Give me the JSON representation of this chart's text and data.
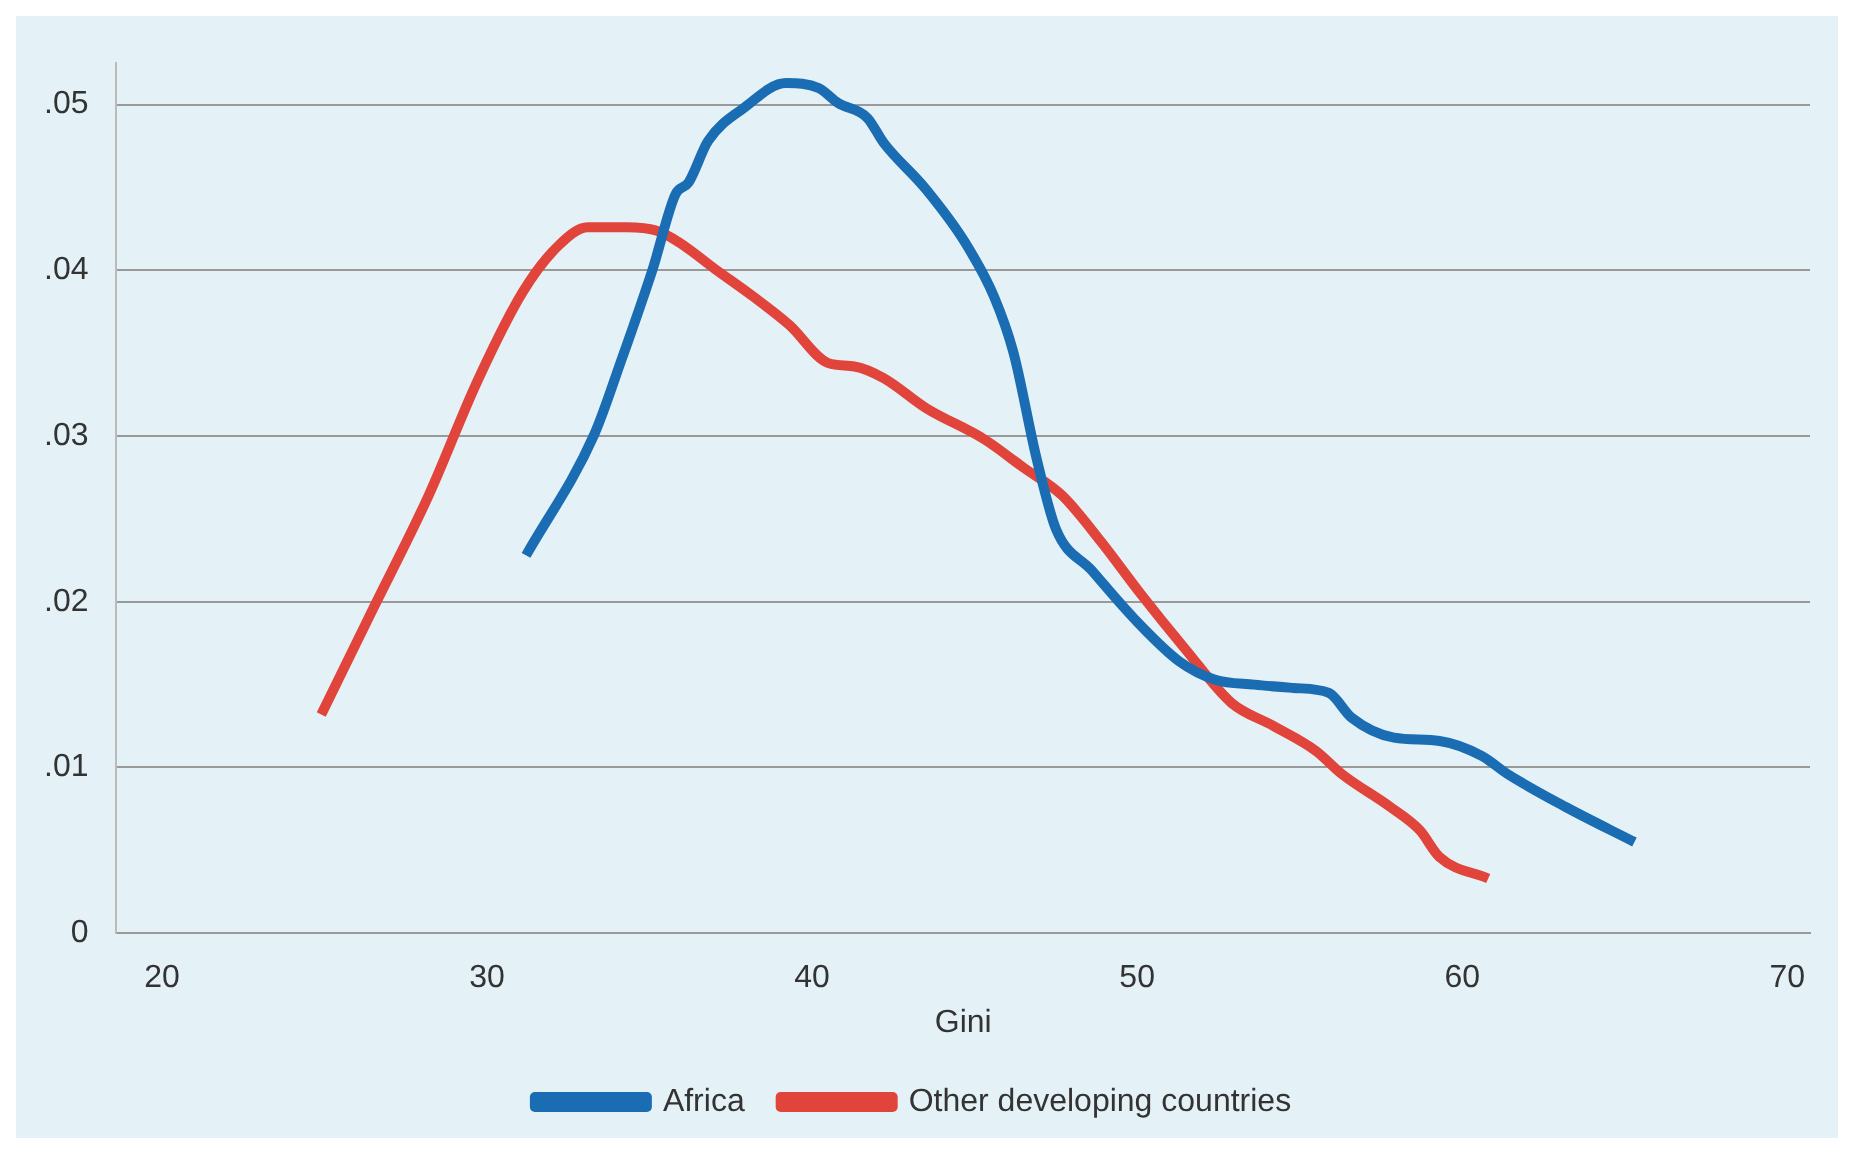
{
  "chart_data": {
    "type": "line",
    "xlabel": "Gini",
    "xlim": [
      18.6,
      70.7
    ],
    "xticks": [
      20,
      30,
      40,
      50,
      60,
      70
    ],
    "ylim": [
      0,
      0.0525
    ],
    "yticks": [
      {
        "value": 0,
        "label": "0"
      },
      {
        "value": 0.01,
        "label": ".01"
      },
      {
        "value": 0.02,
        "label": ".02"
      },
      {
        "value": 0.03,
        "label": ".03"
      },
      {
        "value": 0.04,
        "label": ".04"
      },
      {
        "value": 0.05,
        "label": ".05"
      }
    ],
    "grid": "y",
    "legend": "bottom",
    "marker": "none",
    "line_style": "solid",
    "series": [
      {
        "name": "Africa",
        "color": "#1a6db3",
        "x": [
          31.2,
          33.3,
          34.1,
          35.1,
          35.8,
          36.2,
          36.8,
          37.9,
          39.2,
          40.2,
          40.8,
          41.7,
          42.2,
          43.5,
          44.7,
          45.6,
          46.2,
          46.9,
          47.5,
          48.6,
          49.9,
          51.3,
          52.4,
          53.6,
          54.8,
          55.9,
          56.6,
          57.9,
          59.3,
          60.6,
          61.4,
          63.2,
          65.3
        ],
        "values": [
          0.0228,
          0.0301,
          0.0344,
          0.0401,
          0.0446,
          0.0453,
          0.0478,
          0.0498,
          0.0513,
          0.051,
          0.0501,
          0.0492,
          0.0477,
          0.0449,
          0.0417,
          0.0384,
          0.035,
          0.0287,
          0.0244,
          0.0219,
          0.019,
          0.0164,
          0.0153,
          0.015,
          0.0148,
          0.0145,
          0.013,
          0.0118,
          0.0116,
          0.0107,
          0.0096,
          0.0076,
          0.0055
        ]
      },
      {
        "name": "Other developing countries",
        "color": "#e0443a",
        "x": [
          24.9,
          26.5,
          28.2,
          29.7,
          31.1,
          32.2,
          33.1,
          34.3,
          35.2,
          35.9,
          37.0,
          38.2,
          39.3,
          40.5,
          41.3,
          42.2,
          43.5,
          45.3,
          46.5,
          47.7,
          48.9,
          50.1,
          51.5,
          52.9,
          54.2,
          55.5,
          56.3,
          57.8,
          58.7,
          59.3,
          60.8
        ],
        "values": [
          0.0132,
          0.0196,
          0.0264,
          0.0333,
          0.0387,
          0.0415,
          0.0426,
          0.0426,
          0.0424,
          0.0417,
          0.0401,
          0.0384,
          0.0367,
          0.0344,
          0.0342,
          0.0335,
          0.0317,
          0.0298,
          0.0281,
          0.0264,
          0.0236,
          0.0205,
          0.0171,
          0.0139,
          0.0125,
          0.011,
          0.0096,
          0.0076,
          0.0062,
          0.0046,
          0.0033
        ]
      }
    ]
  }
}
